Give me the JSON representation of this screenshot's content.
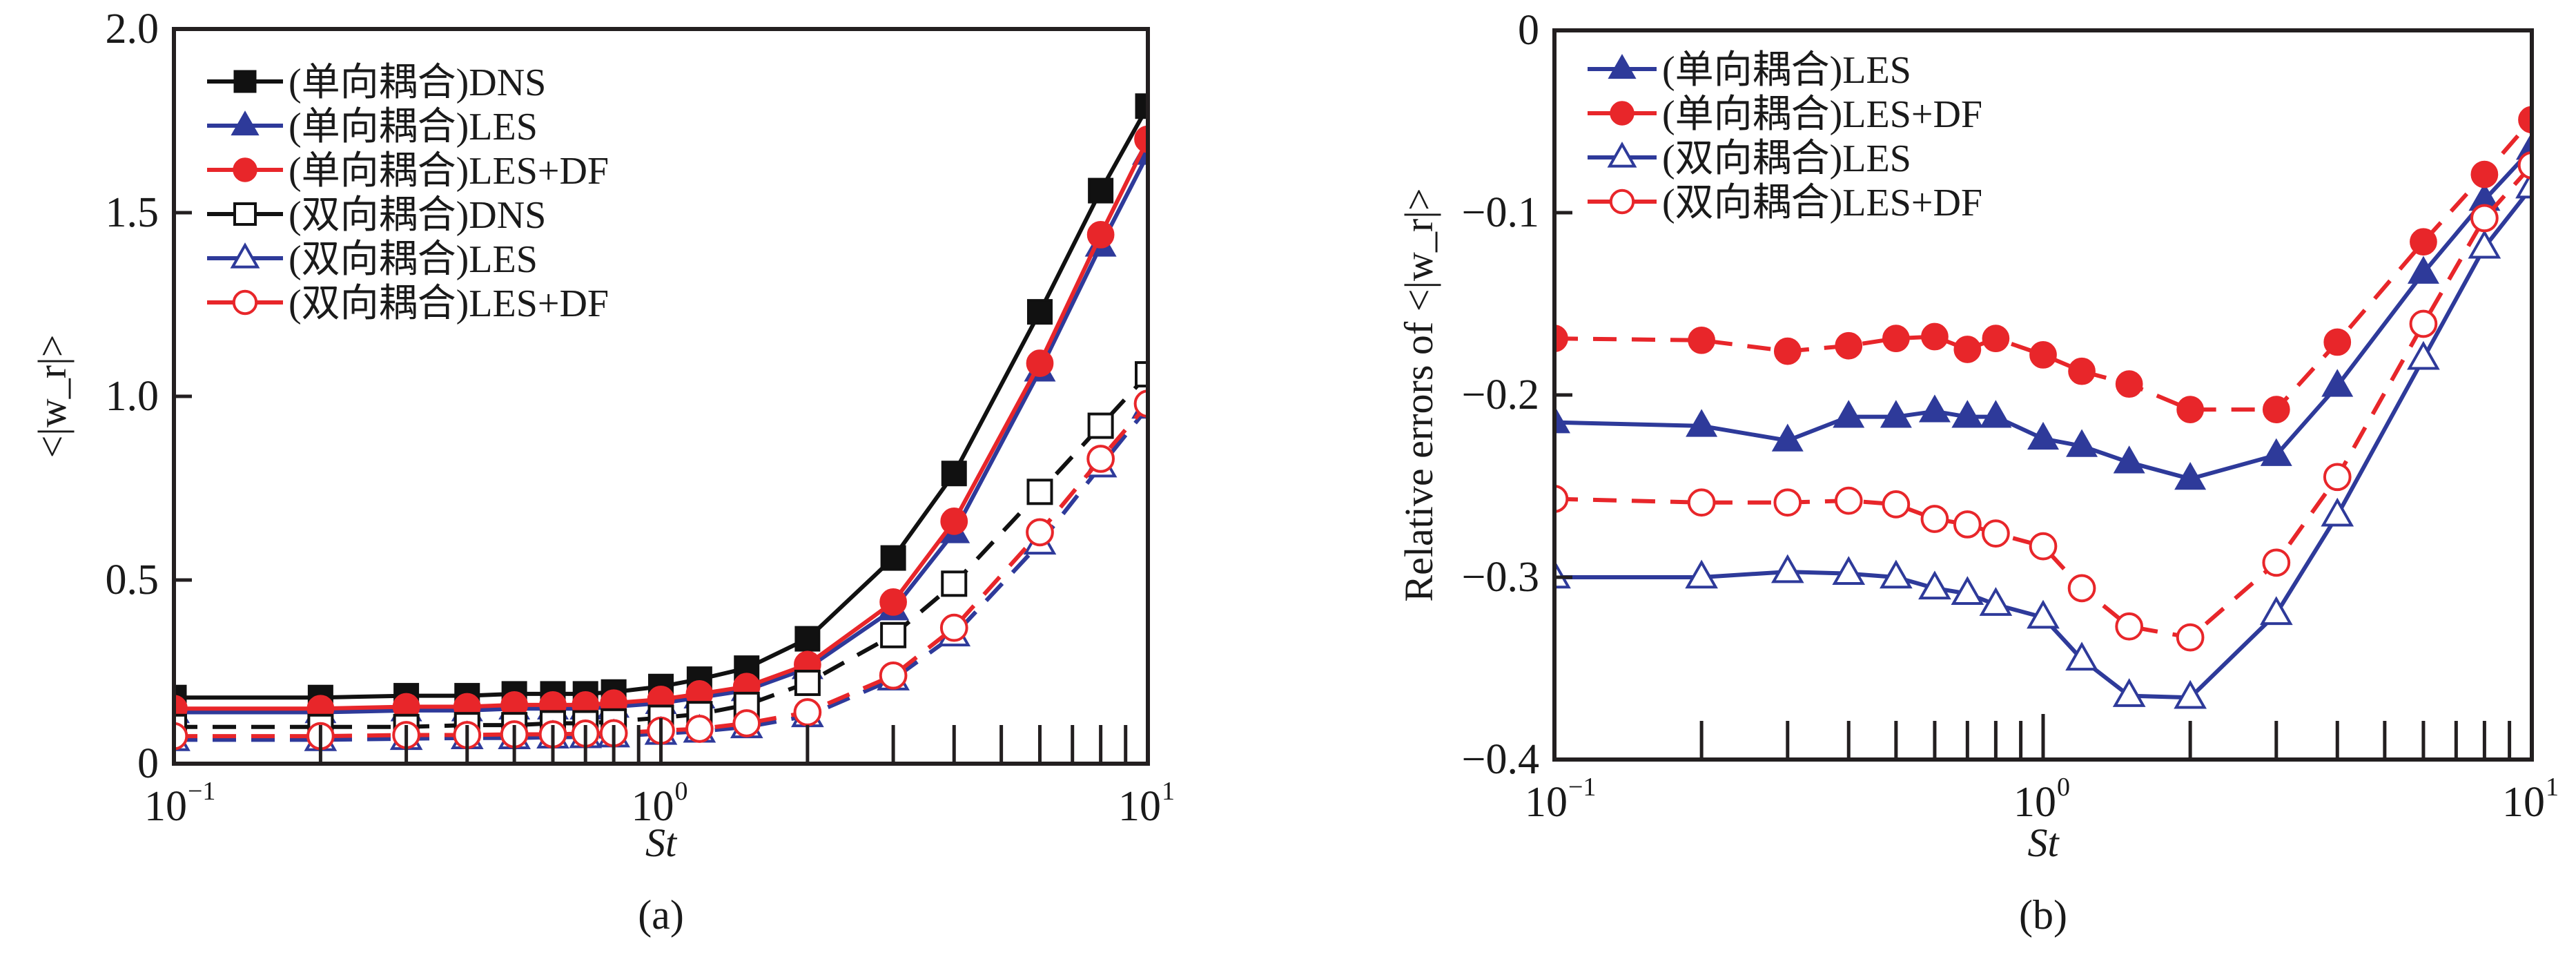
{
  "chart_data": [
    {
      "type": "line",
      "panel_label": "(a)",
      "title": "",
      "xlabel": "St",
      "ylabel": "<|w_r|>",
      "xscale": "log",
      "xlim": [
        0.1,
        10
      ],
      "ylim": [
        0,
        2.0
      ],
      "xticks": [
        {
          "label": "10",
          "sup": "−1",
          "value": 0.1
        },
        {
          "label": "10",
          "sup": "0",
          "value": 1
        },
        {
          "label": "10",
          "sup": "1",
          "value": 10
        }
      ],
      "yticks": [
        {
          "label": "0",
          "value": 0
        },
        {
          "label": "0.5",
          "value": 0.5
        },
        {
          "label": "1.0",
          "value": 1.0
        },
        {
          "label": "1.5",
          "value": 1.5
        },
        {
          "label": "2.0",
          "value": 2.0
        }
      ],
      "grid": false,
      "legend_position": "top-left",
      "x": [
        0.1,
        0.2,
        0.3,
        0.4,
        0.5,
        0.6,
        0.7,
        0.8,
        1.0,
        1.2,
        1.5,
        2.0,
        3.0,
        4.0,
        6.0,
        8.0,
        10.0
      ],
      "series": [
        {
          "name": "(单向耦合)DNS",
          "color": "#111111",
          "marker": "square",
          "filled": true,
          "dash": false,
          "values": [
            0.18,
            0.18,
            0.185,
            0.185,
            0.19,
            0.19,
            0.19,
            0.195,
            0.21,
            0.23,
            0.26,
            0.34,
            0.56,
            0.79,
            1.23,
            1.56,
            1.79
          ]
        },
        {
          "name": "(单向耦合)LES",
          "color": "#2e3a9a",
          "marker": "triangle",
          "filled": true,
          "dash": false,
          "values": [
            0.14,
            0.14,
            0.145,
            0.145,
            0.15,
            0.15,
            0.15,
            0.155,
            0.165,
            0.18,
            0.2,
            0.26,
            0.42,
            0.63,
            1.07,
            1.41,
            1.66
          ]
        },
        {
          "name": "(单向耦合)LES+DF",
          "color": "#e8262a",
          "marker": "circle",
          "filled": true,
          "dash": false,
          "values": [
            0.15,
            0.15,
            0.155,
            0.155,
            0.16,
            0.16,
            0.16,
            0.165,
            0.175,
            0.19,
            0.21,
            0.27,
            0.44,
            0.66,
            1.09,
            1.44,
            1.7
          ]
        },
        {
          "name": "(双向耦合)DNS",
          "color": "#111111",
          "marker": "square",
          "filled": false,
          "dash": true,
          "values": [
            0.1,
            0.1,
            0.1,
            0.105,
            0.105,
            0.11,
            0.11,
            0.115,
            0.125,
            0.135,
            0.16,
            0.22,
            0.35,
            0.49,
            0.74,
            0.92,
            1.06
          ]
        },
        {
          "name": "(双向耦合)LES",
          "color": "#2e3a9a",
          "marker": "triangle",
          "filled": false,
          "dash": true,
          "values": [
            0.065,
            0.065,
            0.068,
            0.07,
            0.07,
            0.072,
            0.073,
            0.075,
            0.082,
            0.088,
            0.1,
            0.13,
            0.23,
            0.35,
            0.6,
            0.81,
            0.97
          ]
        },
        {
          "name": "(双向耦合)LES+DF",
          "color": "#e8262a",
          "marker": "circle",
          "filled": false,
          "dash": true,
          "values": [
            0.075,
            0.075,
            0.078,
            0.078,
            0.08,
            0.08,
            0.082,
            0.083,
            0.09,
            0.095,
            0.11,
            0.14,
            0.24,
            0.37,
            0.63,
            0.83,
            0.98
          ]
        }
      ]
    },
    {
      "type": "line",
      "panel_label": "(b)",
      "title": "",
      "xlabel": "St",
      "ylabel": "Relative errors of <|w_r|>",
      "xscale": "log",
      "xlim": [
        0.1,
        10
      ],
      "ylim": [
        -0.4,
        0
      ],
      "xticks": [
        {
          "label": "10",
          "sup": "−1",
          "value": 0.1
        },
        {
          "label": "10",
          "sup": "0",
          "value": 1
        },
        {
          "label": "10",
          "sup": "1",
          "value": 10
        }
      ],
      "yticks": [
        {
          "label": "−0.4",
          "value": -0.4
        },
        {
          "label": "−0.3",
          "value": -0.3
        },
        {
          "label": "−0.2",
          "value": -0.2
        },
        {
          "label": "−0.1",
          "value": -0.1
        },
        {
          "label": "0",
          "value": 0
        }
      ],
      "grid": false,
      "legend_position": "top-left",
      "x": [
        0.1,
        0.2,
        0.3,
        0.4,
        0.5,
        0.6,
        0.7,
        0.8,
        1.0,
        1.2,
        1.5,
        2.0,
        3.0,
        4.0,
        6.0,
        8.0,
        10.0
      ],
      "series": [
        {
          "name": "(单向耦合)LES",
          "color": "#2e3a9a",
          "marker": "triangle",
          "filled": true,
          "dash": false,
          "values": [
            -0.215,
            -0.217,
            -0.225,
            -0.212,
            -0.212,
            -0.209,
            -0.212,
            -0.212,
            -0.224,
            -0.228,
            -0.237,
            -0.246,
            -0.233,
            -0.195,
            -0.133,
            -0.093,
            -0.065
          ]
        },
        {
          "name": "(单向耦合)LES+DF",
          "color": "#e8262a",
          "marker": "circle",
          "filled": true,
          "dash": true,
          "values": [
            -0.169,
            -0.17,
            -0.176,
            -0.173,
            -0.169,
            -0.168,
            -0.175,
            -0.169,
            -0.178,
            -0.187,
            -0.194,
            -0.208,
            -0.208,
            -0.171,
            -0.116,
            -0.079,
            -0.049
          ]
        },
        {
          "name": "(双向耦合)LES",
          "color": "#2e3a9a",
          "marker": "triangle",
          "filled": false,
          "dash": false,
          "values": [
            -0.3,
            -0.3,
            -0.297,
            -0.298,
            -0.3,
            -0.306,
            -0.309,
            -0.315,
            -0.322,
            -0.345,
            -0.365,
            -0.366,
            -0.32,
            -0.266,
            -0.18,
            -0.119,
            -0.086
          ]
        },
        {
          "name": "(双向耦合)LES+DF",
          "color": "#e8262a",
          "marker": "circle",
          "filled": false,
          "dash": true,
          "values": [
            -0.257,
            -0.259,
            -0.259,
            -0.258,
            -0.26,
            -0.268,
            -0.271,
            -0.276,
            -0.283,
            -0.306,
            -0.327,
            -0.333,
            -0.292,
            -0.245,
            -0.161,
            -0.103,
            -0.074
          ]
        }
      ]
    }
  ]
}
